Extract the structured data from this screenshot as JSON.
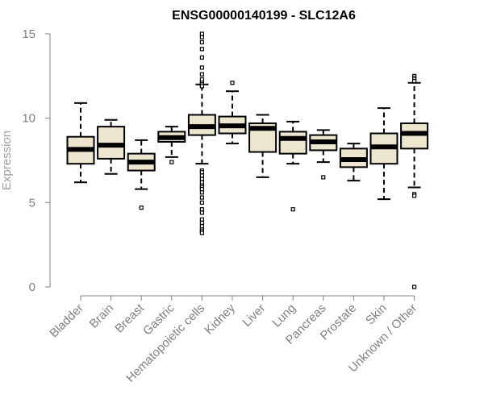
{
  "chart_data": {
    "type": "boxplot",
    "title": "ENSG00000140199 - SLC12A6",
    "xlabel": "",
    "ylabel": "Expression",
    "ylim": [
      0,
      15
    ],
    "yticks": [
      0,
      5,
      10,
      15
    ],
    "grid": false,
    "colors": {
      "box_fill": "#ede6cf",
      "box_stroke": "#000000",
      "axis": "#808080"
    },
    "categories": [
      "Bladder",
      "Brain",
      "Breast",
      "Gastric",
      "Hematopoietic cells",
      "Kidney",
      "Liver",
      "Lung",
      "Pancreas",
      "Prostate",
      "Skin",
      "Unknown / Other"
    ],
    "boxes": [
      {
        "category": "Bladder",
        "whislo": 6.2,
        "q1": 7.3,
        "med": 8.15,
        "q3": 8.9,
        "whishi": 10.9,
        "fliers": []
      },
      {
        "category": "Brain",
        "whislo": 6.7,
        "q1": 7.6,
        "med": 8.4,
        "q3": 9.5,
        "whishi": 9.9,
        "fliers": []
      },
      {
        "category": "Breast",
        "whislo": 5.8,
        "q1": 6.9,
        "med": 7.4,
        "q3": 7.9,
        "whishi": 8.7,
        "fliers": [
          4.7
        ]
      },
      {
        "category": "Gastric",
        "whislo": 7.7,
        "q1": 8.6,
        "med": 8.85,
        "q3": 9.2,
        "whishi": 9.5,
        "fliers": [
          7.4
        ]
      },
      {
        "category": "Hematopoietic cells",
        "whislo": 7.3,
        "q1": 9.0,
        "med": 9.5,
        "q3": 10.2,
        "whishi": 12.0,
        "fliers": [
          15.0,
          14.8,
          14.5,
          14.1,
          13.6,
          13.0,
          12.6,
          12.3,
          12.1,
          12.0,
          12.0,
          11.9,
          6.9,
          6.8,
          6.6,
          6.4,
          6.2,
          6.0,
          5.9,
          5.8,
          5.6,
          5.3,
          5.0,
          4.6,
          4.4,
          4.0,
          3.8,
          3.6,
          3.4,
          3.3,
          3.2
        ]
      },
      {
        "category": "Kidney",
        "whislo": 8.5,
        "q1": 9.1,
        "med": 9.55,
        "q3": 10.1,
        "whishi": 11.6,
        "fliers": [
          12.1
        ]
      },
      {
        "category": "Liver",
        "whislo": 6.5,
        "q1": 8.0,
        "med": 9.4,
        "q3": 9.7,
        "whishi": 10.2,
        "fliers": []
      },
      {
        "category": "Lung",
        "whislo": 7.3,
        "q1": 7.9,
        "med": 8.8,
        "q3": 9.2,
        "whishi": 9.8,
        "fliers": [
          4.6
        ]
      },
      {
        "category": "Pancreas",
        "whislo": 7.4,
        "q1": 8.1,
        "med": 8.6,
        "q3": 9.0,
        "whishi": 9.3,
        "fliers": [
          6.5
        ]
      },
      {
        "category": "Prostate",
        "whislo": 6.3,
        "q1": 7.1,
        "med": 7.55,
        "q3": 8.2,
        "whishi": 8.5,
        "fliers": []
      },
      {
        "category": "Skin",
        "whislo": 5.2,
        "q1": 7.3,
        "med": 8.3,
        "q3": 9.1,
        "whishi": 10.6,
        "fliers": []
      },
      {
        "category": "Unknown / Other",
        "whislo": 5.9,
        "q1": 8.2,
        "med": 9.1,
        "q3": 9.7,
        "whishi": 12.1,
        "fliers": [
          12.5,
          12.4,
          12.3,
          12.2,
          5.5,
          5.4,
          0.0
        ]
      }
    ]
  }
}
